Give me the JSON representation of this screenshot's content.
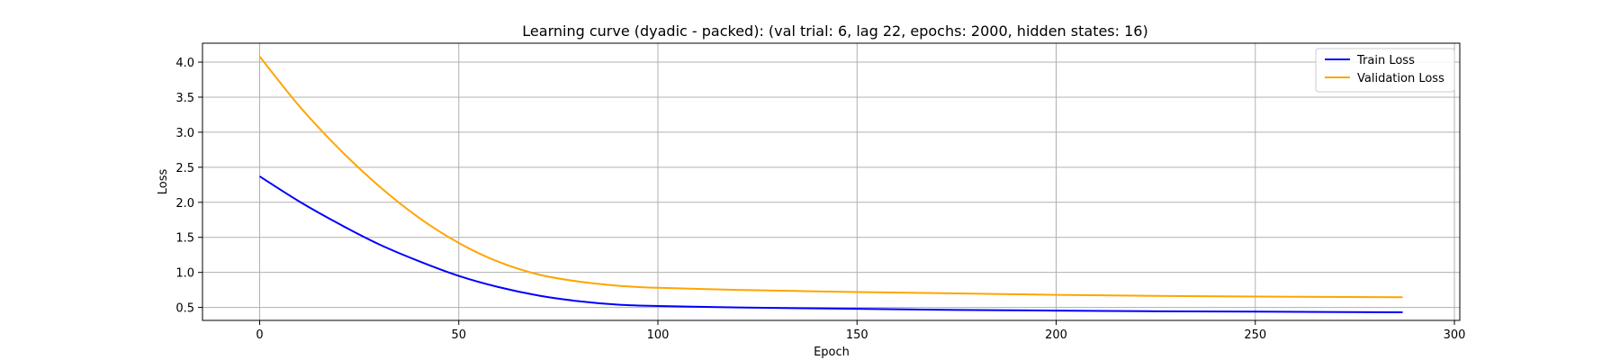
{
  "chart_data": {
    "type": "line",
    "title": "Learning curve (dyadic - packed): (val trial: 6, lag 22, epochs: 2000, hidden states: 16)",
    "xlabel": "Epoch",
    "ylabel": "Loss",
    "xlim": [
      -14.35,
      301.35
    ],
    "ylim": [
      0.315,
      4.27
    ],
    "xticks": [
      0,
      50,
      100,
      150,
      200,
      250,
      300
    ],
    "yticks": [
      0.5,
      1.0,
      1.5,
      2.0,
      2.5,
      3.0,
      3.5,
      4.0
    ],
    "xtick_labels": [
      "0",
      "50",
      "100",
      "150",
      "200",
      "250",
      "300"
    ],
    "ytick_labels": [
      "0.5",
      "1.0",
      "1.5",
      "2.0",
      "2.5",
      "3.0",
      "3.5",
      "4.0"
    ],
    "grid": true,
    "legend_position": "top-right",
    "series": [
      {
        "name": "Train Loss",
        "color": "#0000ff",
        "x": [
          0,
          10,
          20,
          30,
          40,
          50,
          60,
          70,
          80,
          90,
          100,
          120,
          150,
          175,
          200,
          225,
          250,
          287
        ],
        "y": [
          2.37,
          2.01,
          1.69,
          1.4,
          1.16,
          0.95,
          0.79,
          0.67,
          0.59,
          0.54,
          0.52,
          0.5,
          0.48,
          0.465,
          0.455,
          0.445,
          0.44,
          0.43
        ]
      },
      {
        "name": "Validation Loss",
        "color": "#ffa500",
        "x": [
          0,
          10,
          20,
          30,
          40,
          50,
          60,
          70,
          80,
          90,
          100,
          120,
          150,
          175,
          200,
          225,
          250,
          287
        ],
        "y": [
          4.08,
          3.37,
          2.76,
          2.23,
          1.78,
          1.42,
          1.15,
          0.97,
          0.87,
          0.81,
          0.78,
          0.75,
          0.72,
          0.7,
          0.68,
          0.665,
          0.655,
          0.645
        ]
      }
    ]
  }
}
